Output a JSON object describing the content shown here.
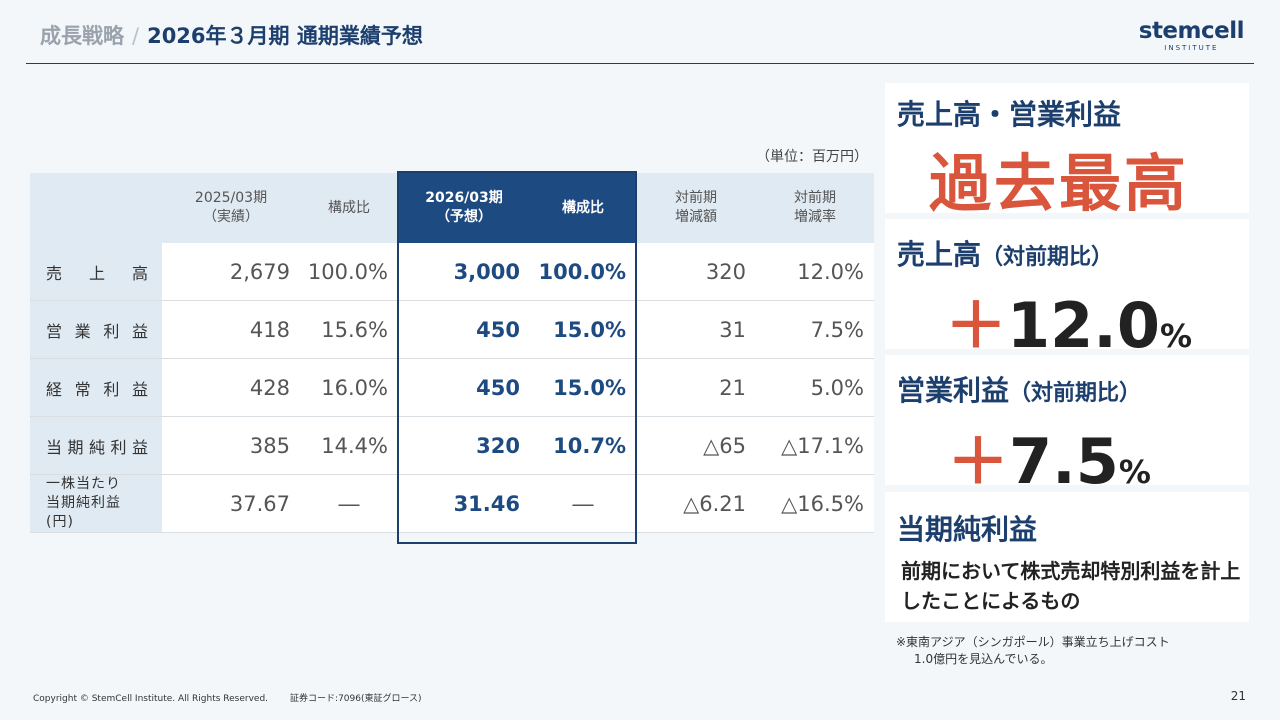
{
  "header": {
    "section": "成長戦略",
    "separator": "/",
    "title": "2026年３月期 通期業績予想",
    "logo_word": "stemcell",
    "logo_sub": "INSTITUTE"
  },
  "unit_note": "（単位：百万円）",
  "table": {
    "headers": {
      "fy2025_l1": "2025/03期",
      "fy2025_l2": "（実績）",
      "ratio_2025": "構成比",
      "fy2026_l1": "2026/03期",
      "fy2026_l2": "（予想）",
      "ratio_2026": "構成比",
      "yoy_amt_l1": "対前期",
      "yoy_amt_l2": "増減額",
      "yoy_rate_l1": "対前期",
      "yoy_rate_l2": "増減率"
    },
    "rows": [
      {
        "label": "売上高",
        "fy2025": "2,679",
        "ratio_2025": "100.0%",
        "fy2026": "3,000",
        "ratio_2026": "100.0%",
        "yoy_amt": "320",
        "yoy_rate": "12.0%"
      },
      {
        "label": "営業利益",
        "fy2025": "418",
        "ratio_2025": "15.6%",
        "fy2026": "450",
        "ratio_2026": "15.0%",
        "yoy_amt": "31",
        "yoy_rate": "7.5%"
      },
      {
        "label": "経常利益",
        "fy2025": "428",
        "ratio_2025": "16.0%",
        "fy2026": "450",
        "ratio_2026": "15.0%",
        "yoy_amt": "21",
        "yoy_rate": "5.0%"
      },
      {
        "label": "当期純利益",
        "fy2025": "385",
        "ratio_2025": "14.4%",
        "fy2026": "320",
        "ratio_2026": "10.7%",
        "yoy_amt": "△65",
        "yoy_rate": "△17.1%"
      },
      {
        "label_l1": "一株当たり",
        "label_l2": "当期純利益(円)",
        "fy2025": "37.67",
        "ratio_2025": "―",
        "fy2026": "31.46",
        "ratio_2026": "―",
        "yoy_amt": "△6.21",
        "yoy_rate": "△16.5%"
      }
    ]
  },
  "cards": {
    "record": {
      "heading": "売上高・営業利益",
      "big": "過去最高"
    },
    "sales": {
      "heading": "売上高",
      "sub": "（対前期比）",
      "plus": "＋",
      "value": "12.0",
      "unit": "%"
    },
    "op": {
      "heading": "営業利益",
      "sub": "（対前期比）",
      "plus": "＋",
      "value": "7.5",
      "unit": "%"
    },
    "net": {
      "heading": "当期純利益",
      "note": "前期において株式売却特別利益を計上したことによるもの"
    }
  },
  "footnote": {
    "line1": "※東南アジア（シンガポール）事業立ち上げコスト",
    "line2": "1.0億円を見込んでいる。"
  },
  "footer": {
    "copyright": "Copyright © StemCell Institute. All Rights Reserved.",
    "code": "証券コード:7096(東証グロース)",
    "page": "21"
  },
  "colors": {
    "navy": "#1d3f6e",
    "accent_red": "#d9553b",
    "header_cell": "#e0eaf2",
    "background": "#f3f7fa"
  }
}
